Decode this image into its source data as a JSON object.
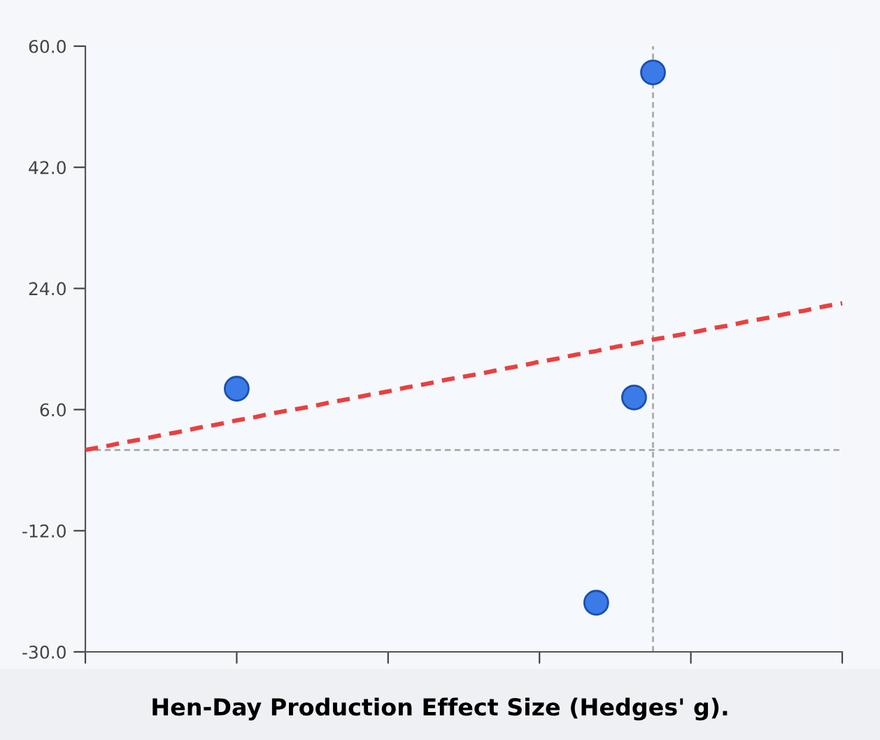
{
  "chart_data": {
    "type": "scatter",
    "xlabel": "Hen-Day Production Effect Size (Hedges' g).",
    "categories": [
      null,
      null,
      null,
      null,
      null,
      null,
      null,
      null,
      null,
      null,
      null,
      null,
      null,
      null,
      null,
      null,
      null,
      null,
      null,
      null,
      null,
      null,
      null,
      null,
      null,
      null,
      null,
      null,
      null,
      null,
      null,
      null,
      null,
      null,
      null,
      null,
      null,
      null,
      null,
      null,
      null
    ],
    "series": [
      {
        "color": "#3b7be8",
        "values": [
          null,
          null,
          null,
          null,
          null,
          null,
          null,
          null,
          9.1,
          null,
          null,
          null,
          null,
          null,
          null,
          null,
          null,
          null,
          null,
          null,
          null,
          null,
          null,
          null,
          null,
          null,
          null,
          -22.7,
          null,
          7.8,
          56.1,
          null,
          null,
          null,
          null,
          null,
          null,
          null,
          null,
          null,
          null
        ],
        "marker": "circle"
      },
      {
        "type": "line",
        "color": "#e84040",
        "values": [
          0,
          0.5,
          1.1,
          1.6,
          2.2,
          2.7,
          3.3,
          3.8,
          4.4,
          4.9,
          5.5,
          6.0,
          6.5,
          7.1,
          7.6,
          8.2,
          8.7,
          9.3,
          9.8,
          10.4,
          10.9,
          11.4,
          12.0,
          12.5,
          13.1,
          13.6,
          14.2,
          14.7,
          15.3,
          15.8,
          16.4,
          16.9,
          17.4,
          18.0,
          18.5,
          19.1,
          19.6,
          20.2,
          20.7,
          21.3,
          21.8
        ],
        "line_style": "dashed",
        "marker": "none"
      }
    ],
    "ylim": [
      -30,
      60
    ],
    "yticks": [
      {
        "value": -30,
        "label": "-30.0"
      },
      {
        "value": -12,
        "label": "-12.0"
      },
      {
        "value": 6,
        "label": "6.0"
      },
      {
        "value": 24,
        "label": "24.0"
      },
      {
        "value": 42,
        "label": "42.0"
      },
      {
        "value": 60,
        "label": "60.0"
      }
    ],
    "ref_lines": [
      {
        "axis": "y",
        "value": 0,
        "color": "#aaaaaa",
        "line_style": "dashed"
      }
    ],
    "tick_labels": "y",
    "grid": false,
    "legend": false
  }
}
